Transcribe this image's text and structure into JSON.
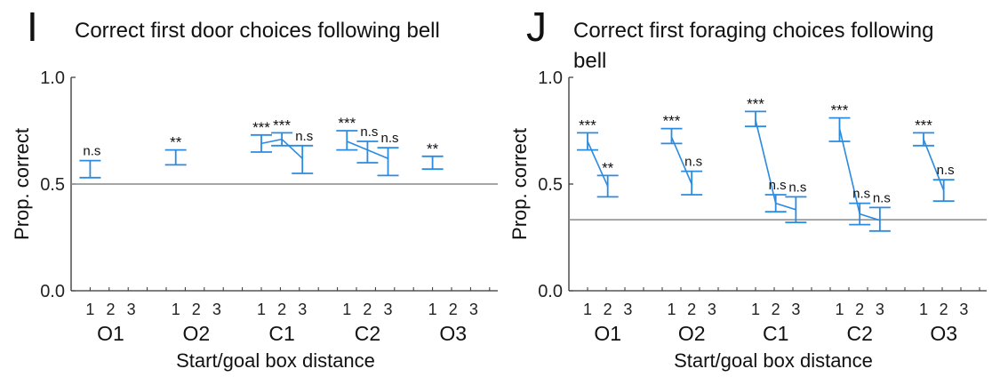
{
  "chart_data": [
    {
      "type": "line",
      "panel": "I",
      "title": "Correct first door choices following bell",
      "xlabel": "Start/goal box distance",
      "ylabel": "Prop. correct",
      "ylim": [
        0.0,
        1.0
      ],
      "yticks": [
        "0.0",
        "0.5",
        "1.0"
      ],
      "reference_line": 0.5,
      "groups": [
        "O1",
        "O2",
        "C1",
        "C2",
        "O3"
      ],
      "distance_ticks": [
        "1",
        "2",
        "3"
      ],
      "color": "#2b8be0",
      "series": [
        {
          "group": "O1",
          "points": [
            {
              "d": 1,
              "mean": 0.57,
              "lo": 0.53,
              "hi": 0.61,
              "sig": "n.s"
            }
          ]
        },
        {
          "group": "O2",
          "points": [
            {
              "d": 1,
              "mean": 0.625,
              "lo": 0.59,
              "hi": 0.66,
              "sig": "**"
            }
          ]
        },
        {
          "group": "C1",
          "points": [
            {
              "d": 1,
              "mean": 0.69,
              "lo": 0.65,
              "hi": 0.73,
              "sig": "***"
            },
            {
              "d": 2,
              "mean": 0.71,
              "lo": 0.68,
              "hi": 0.74,
              "sig": "***"
            },
            {
              "d": 3,
              "mean": 0.62,
              "lo": 0.55,
              "hi": 0.68,
              "sig": "n.s"
            }
          ]
        },
        {
          "group": "C2",
          "points": [
            {
              "d": 1,
              "mean": 0.7,
              "lo": 0.66,
              "hi": 0.75,
              "sig": "***"
            },
            {
              "d": 2,
              "mean": 0.66,
              "lo": 0.6,
              "hi": 0.7,
              "sig": "n.s"
            },
            {
              "d": 3,
              "mean": 0.62,
              "lo": 0.54,
              "hi": 0.67,
              "sig": "n.s"
            }
          ]
        },
        {
          "group": "O3",
          "points": [
            {
              "d": 1,
              "mean": 0.6,
              "lo": 0.57,
              "hi": 0.63,
              "sig": "**"
            }
          ]
        }
      ]
    },
    {
      "type": "line",
      "panel": "J",
      "title": "Correct first foraging choices following bell",
      "xlabel": "Start/goal box distance",
      "ylabel": "Prop. correct",
      "ylim": [
        0.0,
        1.0
      ],
      "yticks": [
        "0.0",
        "0.5",
        "1.0"
      ],
      "reference_line": 0.333,
      "groups": [
        "O1",
        "O2",
        "C1",
        "C2",
        "O3"
      ],
      "distance_ticks": [
        "1",
        "2",
        "3"
      ],
      "color": "#2b8be0",
      "series": [
        {
          "group": "O1",
          "points": [
            {
              "d": 1,
              "mean": 0.7,
              "lo": 0.66,
              "hi": 0.74,
              "sig": "***"
            },
            {
              "d": 2,
              "mean": 0.49,
              "lo": 0.44,
              "hi": 0.54,
              "sig": "**"
            }
          ]
        },
        {
          "group": "O2",
          "points": [
            {
              "d": 1,
              "mean": 0.72,
              "lo": 0.69,
              "hi": 0.76,
              "sig": "***"
            },
            {
              "d": 2,
              "mean": 0.5,
              "lo": 0.45,
              "hi": 0.56,
              "sig": "n.s"
            }
          ]
        },
        {
          "group": "C1",
          "points": [
            {
              "d": 1,
              "mean": 0.8,
              "lo": 0.77,
              "hi": 0.84,
              "sig": "***"
            },
            {
              "d": 2,
              "mean": 0.41,
              "lo": 0.37,
              "hi": 0.45,
              "sig": "n.s"
            },
            {
              "d": 3,
              "mean": 0.38,
              "lo": 0.32,
              "hi": 0.44,
              "sig": "n.s"
            }
          ]
        },
        {
          "group": "C2",
          "points": [
            {
              "d": 1,
              "mean": 0.76,
              "lo": 0.7,
              "hi": 0.81,
              "sig": "***"
            },
            {
              "d": 2,
              "mean": 0.36,
              "lo": 0.31,
              "hi": 0.41,
              "sig": "n.s"
            },
            {
              "d": 3,
              "mean": 0.33,
              "lo": 0.28,
              "hi": 0.39,
              "sig": "n.s"
            }
          ]
        },
        {
          "group": "O3",
          "points": [
            {
              "d": 1,
              "mean": 0.71,
              "lo": 0.68,
              "hi": 0.74,
              "sig": "***"
            },
            {
              "d": 2,
              "mean": 0.47,
              "lo": 0.42,
              "hi": 0.52,
              "sig": "n.s"
            }
          ]
        }
      ]
    }
  ]
}
